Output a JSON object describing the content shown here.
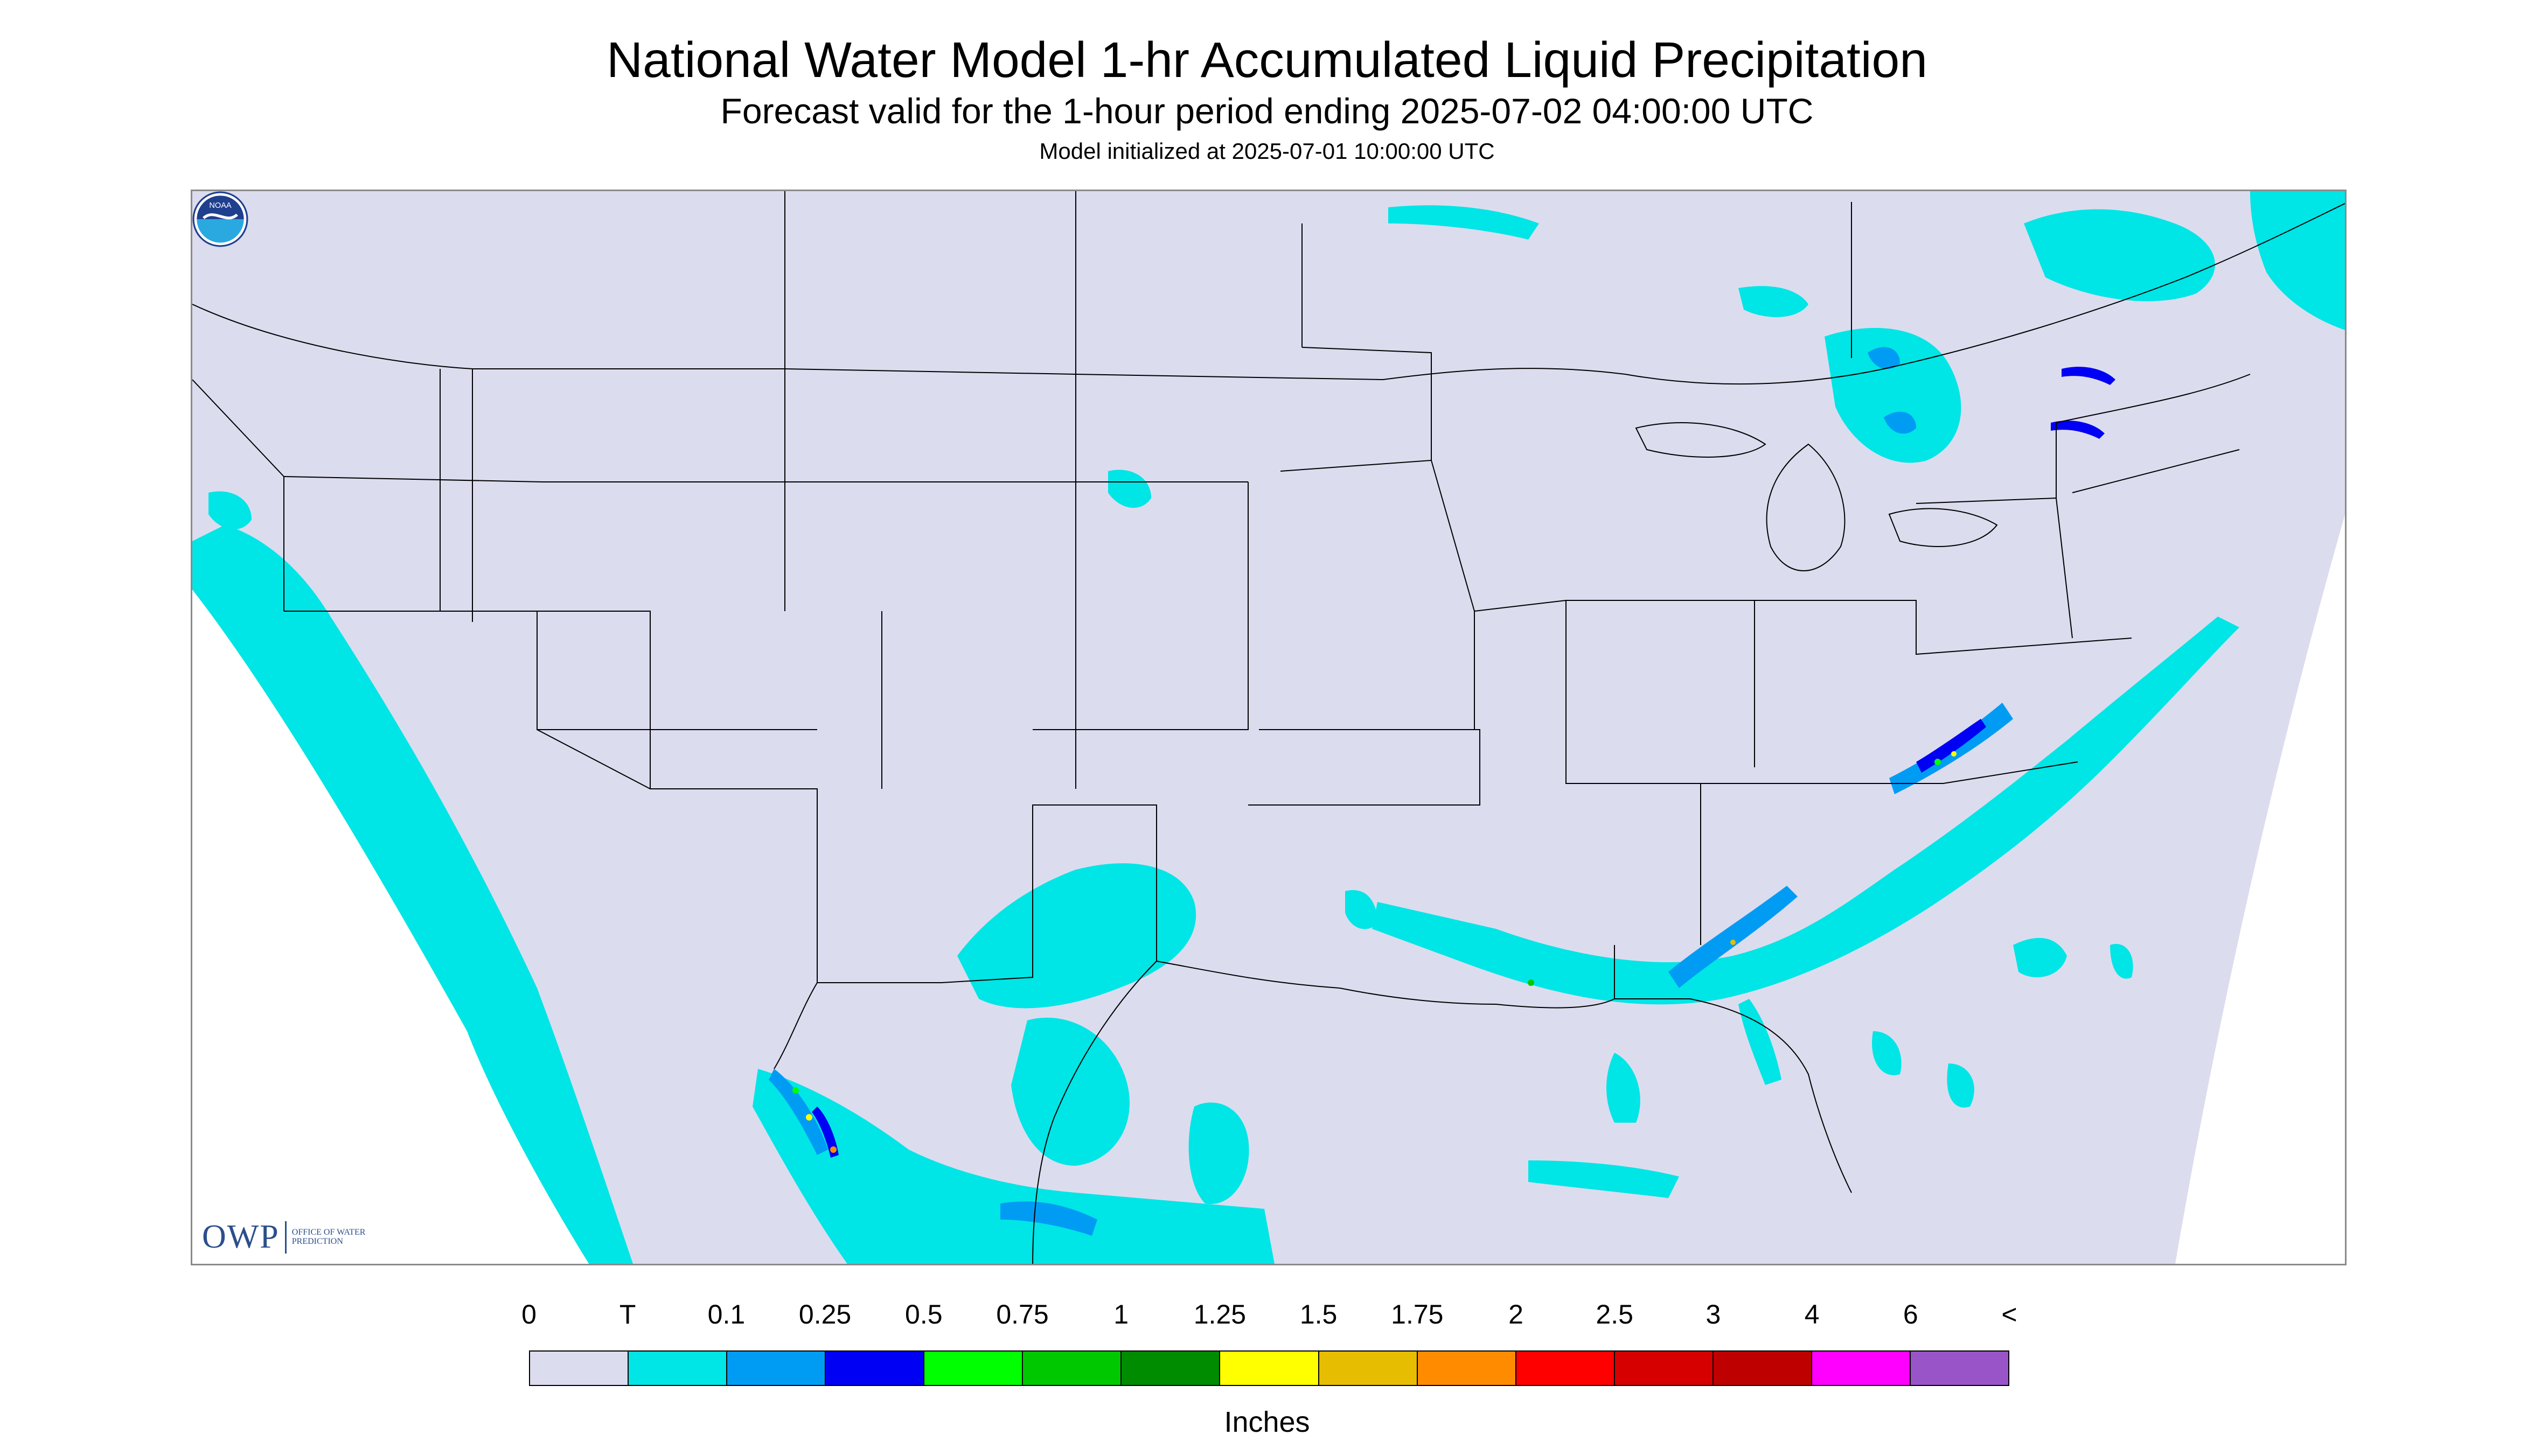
{
  "header": {
    "title": "National Water Model 1-hr Accumulated Liquid Precipitation",
    "subtitle": "Forecast valid for the 1-hour period ending 2025-07-02 04:00:00 UTC",
    "init": "Model initialized at 2025-07-01 10:00:00 UTC"
  },
  "legend": {
    "labels": [
      "0",
      "T",
      "0.1",
      "0.25",
      "0.5",
      "0.75",
      "1",
      "1.25",
      "1.5",
      "1.75",
      "2",
      "2.5",
      "3",
      "4",
      "6",
      "<"
    ],
    "colors": [
      "#dcdcef",
      "#00e5e5",
      "#009cf4",
      "#0000f4",
      "#00ff00",
      "#00c800",
      "#008c00",
      "#ffff00",
      "#e6bd00",
      "#ff8c00",
      "#ff0000",
      "#d70000",
      "#be0000",
      "#ff00ff",
      "#9955c8"
    ],
    "units": "Inches"
  },
  "logos": {
    "owp_mark": "OWP",
    "owp_text": "OFFICE OF WATER PREDICTION",
    "noaa_text": "NOAA"
  },
  "map": {
    "background_color": "#dcdcef",
    "boundary_color": "#000000",
    "precip_trace_color": "#00e5e5"
  }
}
